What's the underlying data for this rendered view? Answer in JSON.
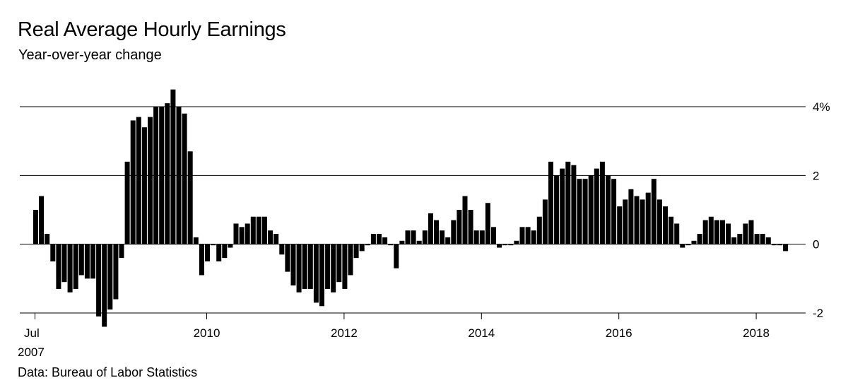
{
  "title": "Real Average Hourly Earnings",
  "subtitle": "Year-over-year change",
  "source": "Data: Bureau of Labor Statistics",
  "chart_data": {
    "type": "bar",
    "title": "Real Average Hourly Earnings",
    "subtitle": "Year-over-year change",
    "xlabel": "",
    "ylabel": "",
    "ylim": [
      -2,
      4
    ],
    "grid": true,
    "y_ticks": [
      {
        "value": 4,
        "label": "4%"
      },
      {
        "value": 2,
        "label": "2"
      },
      {
        "value": 0,
        "label": "0"
      },
      {
        "value": -2,
        "label": "-2"
      }
    ],
    "x_ticks": [
      {
        "date": "2007-07",
        "label": "Jul",
        "label2": "2007"
      },
      {
        "date": "2010-01",
        "label": "2010"
      },
      {
        "date": "2012-01",
        "label": "2012"
      },
      {
        "date": "2014-01",
        "label": "2014"
      },
      {
        "date": "2016-01",
        "label": "2016"
      },
      {
        "date": "2018-01",
        "label": "2018"
      }
    ],
    "start": "2007-07",
    "end": "2018-07",
    "bar_color": "#000000",
    "values": [
      1.0,
      1.4,
      0.3,
      -0.5,
      -1.3,
      -1.1,
      -1.4,
      -1.3,
      -0.9,
      -1.0,
      -1.0,
      -2.1,
      -2.4,
      -1.9,
      -1.6,
      -0.4,
      2.4,
      3.6,
      3.7,
      3.4,
      3.7,
      4.0,
      4.0,
      4.1,
      4.5,
      4.0,
      3.8,
      2.7,
      0.2,
      -0.9,
      -0.5,
      0.0,
      -0.5,
      -0.4,
      -0.1,
      0.6,
      0.5,
      0.6,
      0.8,
      0.8,
      0.8,
      0.4,
      0.3,
      -0.3,
      -0.8,
      -1.2,
      -1.4,
      -1.3,
      -1.3,
      -1.7,
      -1.8,
      -1.3,
      -1.4,
      -1.1,
      -1.3,
      -0.9,
      -0.4,
      -0.2,
      0.0,
      0.3,
      0.3,
      0.2,
      0.0,
      -0.7,
      0.1,
      0.4,
      0.4,
      0.1,
      0.4,
      0.9,
      0.7,
      0.4,
      0.2,
      0.7,
      1.0,
      1.4,
      1.0,
      0.4,
      0.4,
      1.2,
      0.5,
      -0.1,
      0.0,
      0.0,
      0.1,
      0.5,
      0.5,
      0.4,
      0.8,
      1.3,
      2.4,
      2.0,
      2.2,
      2.4,
      2.3,
      1.9,
      1.9,
      2.0,
      2.2,
      2.4,
      2.0,
      1.9,
      1.1,
      1.3,
      1.6,
      1.4,
      1.3,
      1.5,
      1.9,
      1.3,
      1.1,
      0.8,
      0.6,
      -0.1,
      0.0,
      0.1,
      0.3,
      0.7,
      0.8,
      0.7,
      0.7,
      0.6,
      0.2,
      0.3,
      0.6,
      0.7,
      0.3,
      0.3,
      0.2,
      0.0,
      0.0,
      -0.2
    ]
  }
}
